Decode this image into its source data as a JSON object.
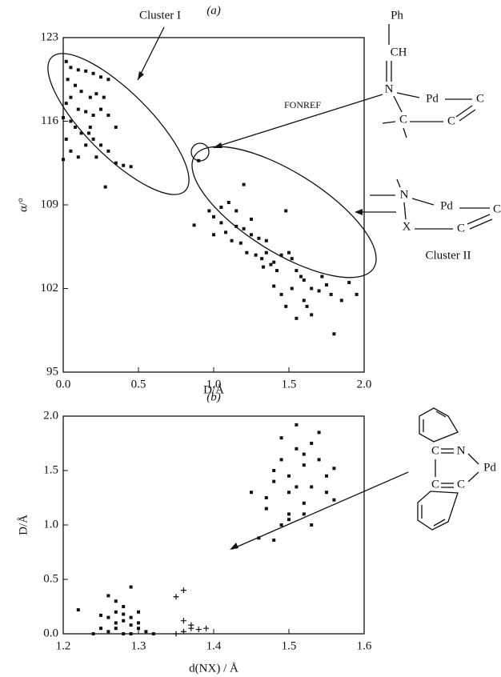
{
  "chart_data": [
    {
      "type": "scatter",
      "title": "(a)",
      "x_label": "D/Å",
      "y_label": "α/°",
      "xlim": [
        0.0,
        2.0
      ],
      "ylim": [
        95,
        123
      ],
      "xticks": [
        {
          "value": 0.0,
          "label": "0.0"
        },
        0.5,
        {
          "value": 1.0,
          "label": "1.0"
        },
        1.5,
        {
          "value": 2.0,
          "label": "2.0"
        }
      ],
      "yticks": [
        95,
        102,
        109,
        116,
        123
      ],
      "annotations": [
        "Cluster I",
        "FONREF",
        "Cluster II"
      ],
      "structure_labels": [
        [
          "Ph",
          "CH",
          "N",
          "Pd",
          "C",
          "C",
          "C"
        ],
        [
          "N",
          "Pd",
          "C",
          "X",
          "C"
        ]
      ],
      "series": [
        {
          "color": "#111111",
          "marker": "square",
          "x": [
            0.02,
            0.05,
            0.1,
            0.15,
            0.2,
            0.25,
            0.3,
            0.03,
            0.08,
            0.12,
            0.18,
            0.22,
            0.27,
            0.05,
            0.02,
            0.1,
            0.15,
            0.2,
            0.25,
            0.3,
            0.35,
            0.05,
            0.0,
            0.08,
            0.12,
            0.17,
            0.2,
            0.25,
            0.3,
            0.35,
            0.4,
            0.45,
            0.02,
            0.05,
            0.1,
            0.0,
            0.15,
            0.22,
            0.28,
            0.18,
            0.9,
            0.87,
            0.97,
            1.0,
            1.05,
            1.1,
            1.15,
            1.2,
            1.25,
            1.0,
            1.08,
            1.12,
            1.18,
            1.22,
            1.25,
            1.3,
            1.32,
            1.35,
            1.38,
            1.4,
            1.42,
            1.45,
            1.48,
            1.5,
            1.52,
            1.55,
            1.58,
            1.6,
            1.15,
            1.28,
            1.33,
            1.45,
            1.48,
            1.52,
            1.55,
            1.6,
            1.62,
            1.65,
            1.7,
            1.72,
            1.75,
            1.78,
            1.8,
            1.85,
            1.9,
            1.95,
            1.4,
            1.35,
            1.2,
            1.05,
            1.65
          ],
          "values": [
            121,
            120.5,
            120.3,
            120.2,
            120,
            119.7,
            119.5,
            119.5,
            119,
            118.5,
            118,
            118.3,
            118,
            118,
            117.5,
            117,
            116.8,
            116.5,
            117,
            116.5,
            115.5,
            116,
            116.3,
            115.5,
            115,
            115,
            114.5,
            114,
            113.5,
            112.5,
            112.3,
            112.2,
            114.5,
            113.5,
            113,
            112.8,
            114,
            113,
            110.5,
            115.5,
            112.7,
            107.3,
            108.5,
            108,
            107.5,
            109.2,
            108.5,
            110.7,
            107.8,
            106.5,
            106.7,
            106,
            105.8,
            105,
            106.5,
            106.2,
            104.5,
            105,
            104,
            104.2,
            103.5,
            104.8,
            108.5,
            105,
            104.5,
            103.5,
            103,
            102.7,
            107.2,
            104.8,
            103.8,
            101.5,
            100.5,
            102,
            99.5,
            101,
            100.5,
            102,
            101.8,
            103,
            102.3,
            101.5,
            98.2,
            101,
            102.5,
            101.5,
            102.2,
            106,
            107,
            108.8,
            99.8
          ]
        }
      ]
    },
    {
      "type": "scatter",
      "title": "(b)",
      "x_label": "d(NX) / Å",
      "y_label": "D/Å",
      "xlim": [
        1.2,
        1.6
      ],
      "ylim": [
        0.0,
        2.0
      ],
      "xticks": [
        1.2,
        1.3,
        1.4,
        1.5,
        1.6
      ],
      "yticks": [
        {
          "value": 0.0,
          "label": "0.0"
        },
        0.5,
        {
          "value": 1.0,
          "label": "1.0"
        },
        1.5,
        {
          "value": 2.0,
          "label": "2.0"
        }
      ],
      "structure_labels": [
        [
          "C",
          "N",
          "C",
          "C",
          "Pd"
        ]
      ],
      "series": [
        {
          "color": "#111111",
          "marker": "square",
          "x": [
            1.22,
            1.25,
            1.26,
            1.26,
            1.27,
            1.27,
            1.28,
            1.28,
            1.29,
            1.29,
            1.3,
            1.3,
            1.28,
            1.27,
            1.26,
            1.29,
            1.31,
            1.24,
            1.3,
            1.28,
            1.27,
            1.25,
            1.32,
            1.29,
            1.46,
            1.48,
            1.45,
            1.47,
            1.48,
            1.49,
            1.49,
            1.5,
            1.5,
            1.5,
            1.51,
            1.51,
            1.52,
            1.52,
            1.52,
            1.53,
            1.53,
            1.54,
            1.55,
            1.55,
            1.56,
            1.56,
            1.48,
            1.5,
            1.51,
            1.47,
            1.49,
            1.54,
            1.53,
            1.52
          ],
          "values": [
            0.22,
            0.05,
            0.15,
            0.35,
            0.2,
            0.1,
            0.25,
            0.0,
            0.43,
            0.15,
            0.1,
            0.05,
            0.18,
            0.3,
            0.02,
            0.0,
            0.02,
            0.0,
            0.2,
            0.12,
            0.05,
            0.17,
            0.0,
            0.08,
            0.88,
            0.86,
            1.3,
            1.25,
            1.5,
            1.0,
            1.6,
            1.05,
            1.3,
            1.45,
            1.92,
            1.7,
            1.2,
            1.55,
            1.1,
            1.35,
            1.75,
            1.6,
            1.3,
            1.45,
            1.52,
            1.23,
            1.4,
            1.1,
            1.35,
            1.15,
            1.8,
            1.85,
            1.0,
            1.65
          ]
        },
        {
          "color": "#111111",
          "marker": "cross",
          "x": [
            1.35,
            1.36,
            1.36,
            1.37,
            1.37,
            1.38,
            1.39,
            1.35,
            1.36
          ],
          "values": [
            0.34,
            0.4,
            0.12,
            0.08,
            0.05,
            0.04,
            0.05,
            0.0,
            0.02
          ]
        }
      ]
    }
  ]
}
